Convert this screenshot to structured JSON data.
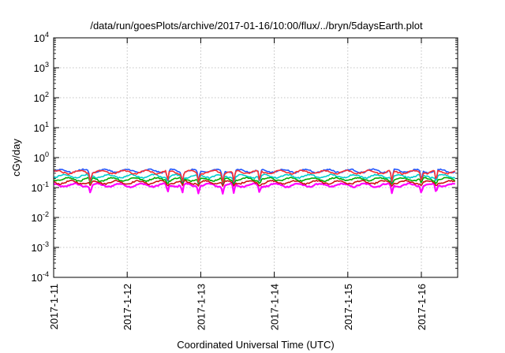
{
  "chart_data": {
    "type": "line",
    "title": "/data/run/goesPlots/archive/2017-01-16/10:00/flux/../bryn/5daysEarth.plot",
    "xlabel": "Coordinated Universal Time (UTC)",
    "ylabel": "cGy/day",
    "yscale": "log",
    "ylim": [
      0.0001,
      10000
    ],
    "xlim": [
      "2017-1-11",
      "2017-1-16 11:00"
    ],
    "grid": true,
    "xticks": [
      "2017-1-11",
      "2017-1-12",
      "2017-1-13",
      "2017-1-14",
      "2017-1-15",
      "2017-1-16"
    ],
    "yticks": [
      {
        "base": "10",
        "exp": "-4"
      },
      {
        "base": "10",
        "exp": "-3"
      },
      {
        "base": "10",
        "exp": "-2"
      },
      {
        "base": "10",
        "exp": "-1"
      },
      {
        "base": "10",
        "exp": "0"
      },
      {
        "base": "10",
        "exp": "1"
      },
      {
        "base": "10",
        "exp": "2"
      },
      {
        "base": "10",
        "exp": "3"
      },
      {
        "base": "10",
        "exp": "4"
      }
    ],
    "series": [
      {
        "color": "#ff00ff",
        "typical_value": 0.12,
        "min_value": 0.06
      },
      {
        "color": "#cc1111",
        "typical_value": 0.15,
        "min_value": 0.11
      },
      {
        "color": "#00aa00",
        "typical_value": 0.19,
        "min_value": 0.13
      },
      {
        "color": "#00cccc",
        "typical_value": 0.24,
        "min_value": 0.15
      },
      {
        "color": "#2255ff",
        "typical_value": 0.36,
        "min_value": 0.13
      },
      {
        "color": "#ff3030",
        "typical_value": 0.33,
        "min_value": 0.14
      }
    ],
    "dip_days": [
      11.5,
      12.55,
      12.75,
      12.97,
      13.3,
      13.45,
      13.8,
      15.6,
      16.0,
      16.2
    ]
  }
}
